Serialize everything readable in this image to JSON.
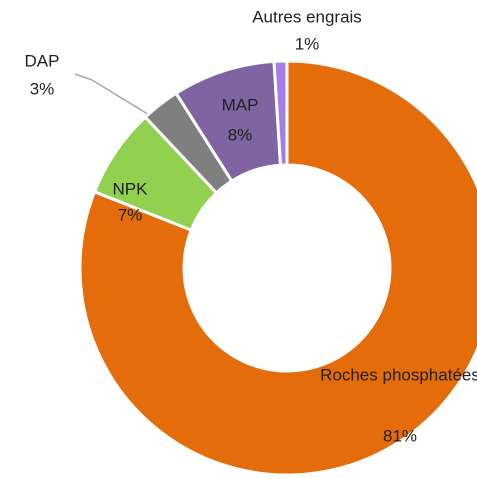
{
  "chart_data": {
    "type": "donut",
    "categories": [
      "Roches phosphatées",
      "NPK",
      "DAP",
      "MAP",
      "Autres engrais"
    ],
    "values": [
      81,
      7,
      3,
      8,
      1
    ],
    "value_labels": [
      "81%",
      "7%",
      "3%",
      "8%",
      "1%"
    ],
    "colors": [
      "#e46c0a",
      "#92d050",
      "#7f7f7f",
      "#8064a2",
      "#a57ce8"
    ]
  }
}
